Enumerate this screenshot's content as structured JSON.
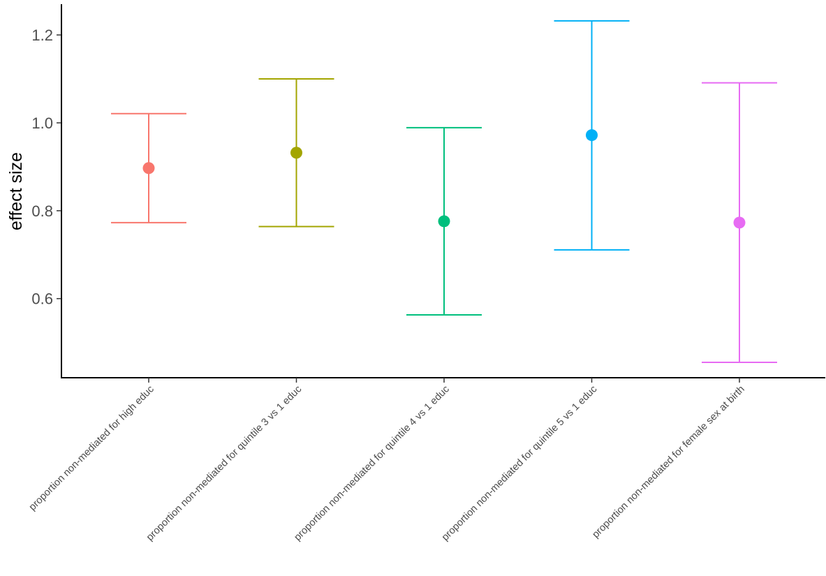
{
  "chart_data": {
    "type": "errorbar",
    "title": "",
    "xlabel": "",
    "ylabel": "effect size",
    "ylim": [
      0.42,
      1.27
    ],
    "yticks": [
      0.6,
      0.8,
      1.0,
      1.2
    ],
    "ytick_labels": [
      "0.6",
      "0.8",
      "1.0",
      "1.2"
    ],
    "grid": false,
    "legend": "none",
    "categories": [
      "proportion non-mediated for high educ",
      "proportion non-mediated for quintile 3 vs 1 educ",
      "proportion non-mediated for quintile 4 vs 1 educ",
      "proportion non-mediated for quintile 5 vs 1 educ",
      "proportion non-mediated for female sex at birth"
    ],
    "estimates": [
      0.897,
      0.932,
      0.776,
      0.972,
      0.773
    ],
    "lower": [
      0.773,
      0.764,
      0.563,
      0.711,
      0.455
    ],
    "upper": [
      1.021,
      1.1,
      0.989,
      1.232,
      1.091
    ],
    "colors": [
      "#F8766D",
      "#A3A500",
      "#00BF7D",
      "#00B0F6",
      "#E76BF3"
    ]
  }
}
